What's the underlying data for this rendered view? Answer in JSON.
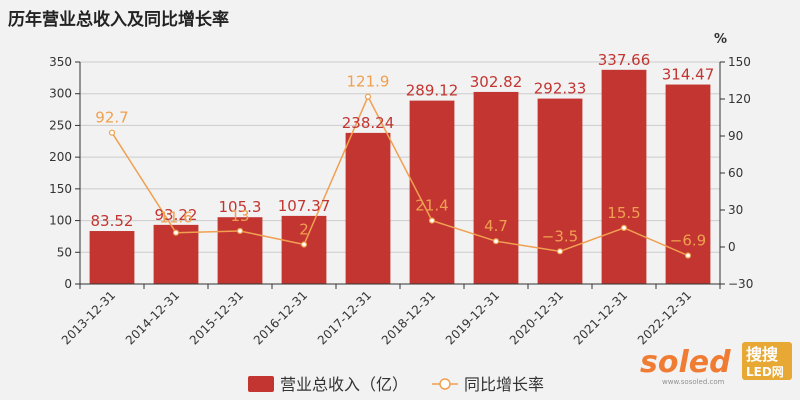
{
  "chart_data": {
    "type": "bar",
    "title": "历年营业总收入及同比增长率",
    "categories": [
      "2013-12-31",
      "2014-12-31",
      "2015-12-31",
      "2016-12-31",
      "2017-12-31",
      "2018-12-31",
      "2019-12-31",
      "2020-12-31",
      "2021-12-31",
      "2022-12-31"
    ],
    "series": [
      {
        "name": "营业总收入（亿）",
        "type": "bar",
        "axis": "left",
        "values": [
          83.52,
          93.22,
          105.3,
          107.37,
          238.24,
          289.12,
          302.82,
          292.33,
          337.66,
          314.47
        ],
        "labels": [
          "83.52",
          "93.22",
          "105.3",
          "107.37",
          "238.24",
          "289.12",
          "302.82",
          "292.33",
          "337.66",
          "314.47"
        ]
      },
      {
        "name": "同比增长率",
        "type": "line",
        "axis": "right",
        "values": [
          92.7,
          11.6,
          13,
          2,
          121.9,
          21.4,
          4.7,
          -3.5,
          15.5,
          -6.9
        ],
        "labels": [
          "92.7",
          "11.6",
          "13",
          "2",
          "121.9",
          "21.4",
          "4.7",
          "−3.5",
          "15.5",
          "−6.9"
        ]
      }
    ],
    "left_axis": {
      "ylim": [
        0,
        350
      ],
      "ticks": [
        "0",
        "50",
        "100",
        "150",
        "200",
        "250",
        "300",
        "350"
      ]
    },
    "right_axis": {
      "ylim": [
        -30,
        150
      ],
      "unit": "%",
      "ticks": [
        "−30",
        "0",
        "30",
        "60",
        "90",
        "120",
        "150"
      ]
    },
    "grid": true,
    "legend_position": "bottom-center",
    "colors": {
      "bar": "#c23531",
      "line": "#f0a050",
      "grid": "#cccccc",
      "axis": "#333333"
    }
  },
  "watermark": {
    "brand": "soled",
    "badge_top": "搜搜",
    "badge_bottom": "LED网",
    "url": "www.sosoled.com"
  }
}
